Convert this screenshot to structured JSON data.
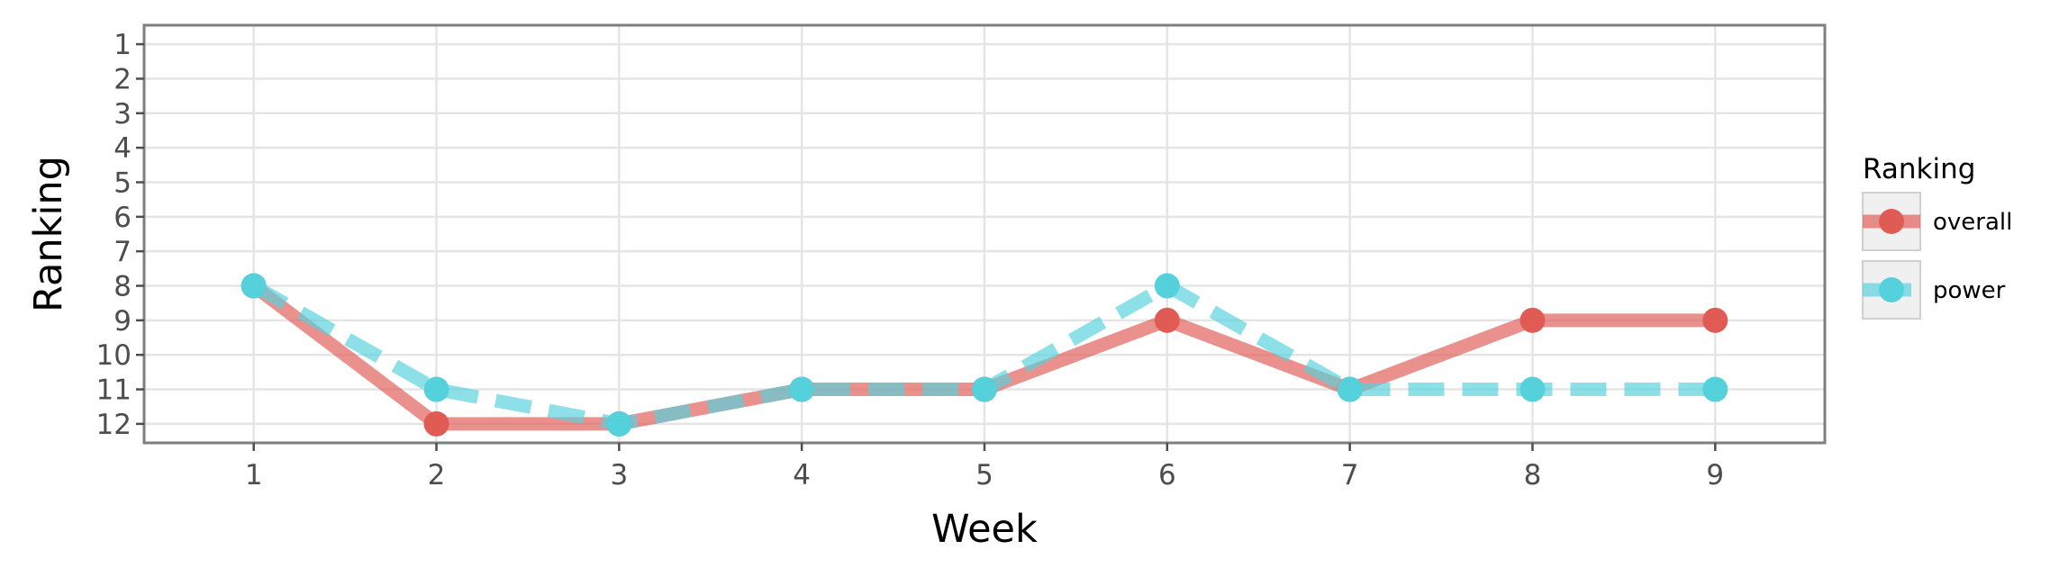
{
  "chart_data": {
    "type": "line",
    "xlabel": "Week",
    "ylabel": "Ranking",
    "x": [
      1,
      2,
      3,
      4,
      5,
      6,
      7,
      8,
      9
    ],
    "xlim": [
      0.4,
      9.6
    ],
    "ylim": [
      12.55,
      0.45
    ],
    "y_reversed": true,
    "yticks": [
      1,
      2,
      3,
      4,
      5,
      6,
      7,
      8,
      9,
      10,
      11,
      12
    ],
    "grid": true,
    "legend": {
      "title": "Ranking",
      "placement": "right"
    },
    "series": [
      {
        "name": "overall",
        "values": [
          8,
          12,
          12,
          11,
          11,
          9,
          11,
          9,
          9
        ],
        "color": "#e15b55",
        "style": "solid"
      },
      {
        "name": "power",
        "values": [
          8,
          11,
          12,
          11,
          11,
          8,
          11,
          11,
          11
        ],
        "color": "#55d1dc",
        "style": "dashed"
      }
    ]
  }
}
